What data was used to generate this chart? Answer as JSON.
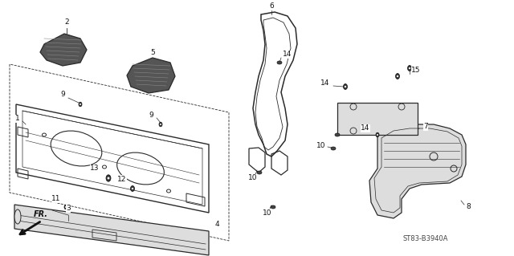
{
  "bg_color": "#ffffff",
  "line_color": "#2a2a2a",
  "part_number_text": "ST83-B3940A",
  "fig_width": 6.4,
  "fig_height": 3.19,
  "dpi": 100
}
